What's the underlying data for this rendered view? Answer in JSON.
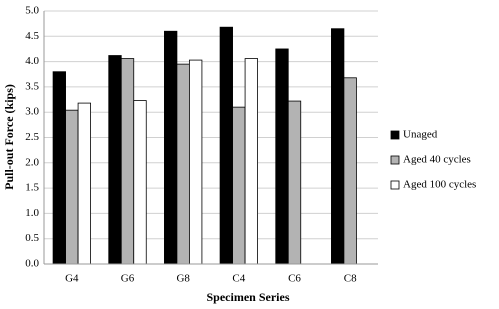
{
  "chart_data": {
    "type": "bar",
    "x_label": "Specimen Series",
    "y_label": "Pull-out Force (kips)",
    "categories": [
      "G4",
      "G6",
      "G8",
      "C4",
      "C6",
      "C8"
    ],
    "series": [
      {
        "name": "Unaged",
        "color": "#000000",
        "values": [
          3.8,
          4.12,
          4.6,
          4.68,
          4.25,
          4.65
        ]
      },
      {
        "name": "Aged 40 cycles",
        "color": "#b3b3b3",
        "values": [
          3.04,
          4.06,
          3.95,
          3.1,
          3.22,
          3.68
        ]
      },
      {
        "name": "Aged 100 cycles",
        "color": "#ffffff",
        "values": [
          3.18,
          3.23,
          4.03,
          4.06,
          null,
          null
        ]
      }
    ],
    "ylim": [
      0,
      5
    ],
    "yticks": [
      {
        "value": 0,
        "label": "0.0"
      },
      0.5,
      {
        "value": 1,
        "label": "1.0"
      },
      1.5,
      {
        "value": 2,
        "label": "2.0"
      },
      2.5,
      {
        "value": 3,
        "label": "3.0"
      },
      3.5,
      {
        "value": 4,
        "label": "4.0"
      },
      4.5,
      {
        "value": 5,
        "label": "5.0"
      }
    ],
    "grid": true,
    "legend": "right"
  }
}
